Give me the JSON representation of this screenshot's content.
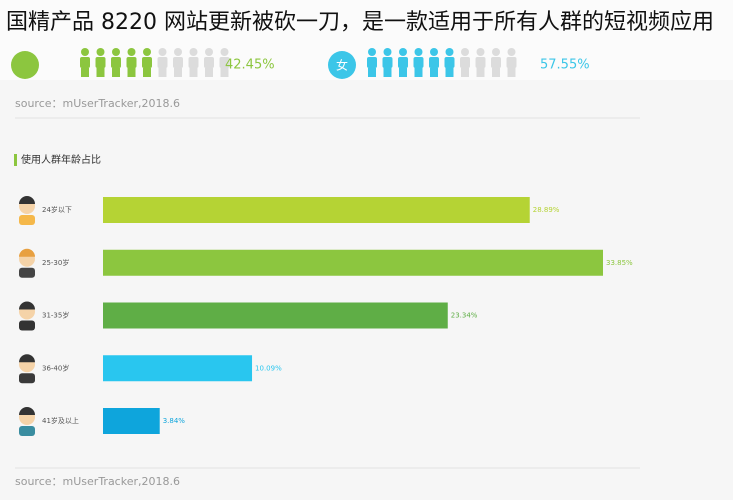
{
  "headline": "国精产品 8220 网站更新被砍一刀，是一款适用于所有人群的短视频应用",
  "gender": {
    "male": {
      "share": {
        "value": 42.45,
        "label": "42.45%"
      },
      "color": "#8cc63f"
    },
    "female": {
      "symbol": "女",
      "share": {
        "value": 57.55,
        "label": "57.55%"
      },
      "color": "#3cc6e8"
    }
  },
  "sources": [
    "source：mUserTracker,2018.6",
    "source：mUserTracker,2018.6"
  ],
  "chart_data": {
    "type": "bar",
    "orientation": "horizontal",
    "title": "使用人群年龄占比",
    "categories": [
      "24岁以下",
      "25-30岁",
      "31-35岁",
      "36-40岁",
      "41岁及以上"
    ],
    "values": [
      28.89,
      33.85,
      23.34,
      10.09,
      3.84
    ],
    "value_labels": [
      "28.89%",
      "33.85%",
      "23.34%",
      "10.09%",
      "3.84%"
    ],
    "colors": [
      "#b5d334",
      "#8cc63f",
      "#5fae46",
      "#29c6ef",
      "#0ea5dc"
    ]
  }
}
